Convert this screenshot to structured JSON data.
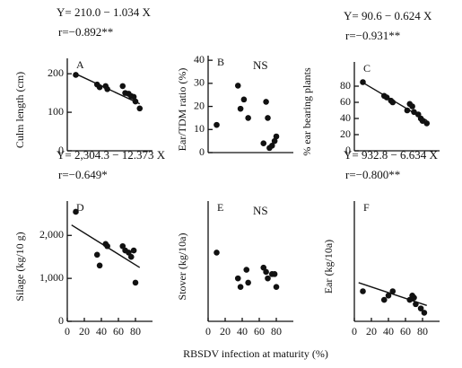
{
  "xlabel": "RBSDV infection at maturity (%)",
  "chart_data": [
    {
      "type": "scatter",
      "label": "A",
      "ylabel": "Culm length (cm)",
      "equation": "Y= 210.0 − 1.034 X",
      "r": "r=−0.892**",
      "x": [
        10,
        35,
        38,
        45,
        47,
        65,
        68,
        72,
        75,
        78,
        80,
        85
      ],
      "y": [
        197,
        172,
        165,
        168,
        160,
        168,
        150,
        148,
        142,
        140,
        128,
        110
      ],
      "xlim": [
        0,
        100
      ],
      "ylim": [
        0,
        240
      ],
      "yticks": [
        0,
        100,
        200
      ],
      "trendline": {
        "intercept": 210.0,
        "slope": -1.034,
        "x": [
          10,
          85
        ]
      }
    },
    {
      "type": "scatter",
      "label": "B",
      "ylabel": "Ear/TDM ratio (%)",
      "annotation": "NS",
      "x": [
        10,
        35,
        38,
        42,
        47,
        65,
        68,
        70,
        72,
        75,
        78,
        80
      ],
      "y": [
        12,
        29,
        19,
        23,
        15,
        4,
        22,
        15,
        2,
        3,
        5,
        7
      ],
      "xlim": [
        0,
        100
      ],
      "ylim": [
        0,
        42
      ],
      "yticks": [
        0,
        10,
        20,
        30,
        40
      ]
    },
    {
      "type": "scatter",
      "label": "C",
      "ylabel": "% ear bearing plants",
      "equation": "Y= 90.6 − 0.624 X",
      "r": "r=−0.931**",
      "x": [
        10,
        35,
        38,
        43,
        45,
        62,
        65,
        68,
        70,
        75,
        78,
        80,
        85
      ],
      "y": [
        85,
        68,
        66,
        62,
        60,
        50,
        58,
        55,
        48,
        45,
        40,
        37,
        34
      ],
      "xlim": [
        0,
        100
      ],
      "ylim": [
        0,
        110
      ],
      "yticks": [
        0,
        20,
        40,
        60,
        80
      ],
      "trendline": {
        "intercept": 90.6,
        "slope": -0.624,
        "x": [
          10,
          85
        ]
      }
    },
    {
      "type": "scatter",
      "label": "D",
      "ylabel": "Silage (kg/10 g)",
      "equation": "Y= 2,304.3 − 12.373 X",
      "r": "r=−0.649*",
      "x": [
        10,
        35,
        38,
        45,
        47,
        65,
        68,
        72,
        75,
        78,
        80
      ],
      "y": [
        2550,
        1550,
        1300,
        1800,
        1750,
        1750,
        1650,
        1600,
        1500,
        1650,
        900
      ],
      "xlim": [
        0,
        100
      ],
      "ylim": [
        0,
        2800
      ],
      "xticks": [
        0,
        20,
        40,
        60,
        80
      ],
      "yticks": [
        0,
        {
          "value": 1000,
          "label": "1,000"
        },
        {
          "value": 2000,
          "label": "2,000"
        }
      ],
      "trendline": {
        "intercept": 2304.3,
        "slope": -12.373,
        "x": [
          5,
          85
        ]
      }
    },
    {
      "type": "scatter",
      "label": "E",
      "ylabel": "Stover (kg/10a)",
      "annotation": "NS",
      "x": [
        10,
        35,
        38,
        45,
        47,
        65,
        68,
        70,
        75,
        78,
        80
      ],
      "y": [
        1600,
        1000,
        800,
        1200,
        900,
        1250,
        1150,
        1000,
        1100,
        1100,
        800
      ],
      "xlim": [
        0,
        100
      ],
      "ylim": [
        0,
        2800
      ],
      "xticks": [
        0,
        20,
        40,
        60,
        80
      ]
    },
    {
      "type": "scatter",
      "label": "F",
      "ylabel": "Ear (kg/10a)",
      "equation": "Y= 932.8 − 6.634 X",
      "r": "r=−0.800**",
      "x": [
        10,
        35,
        40,
        45,
        65,
        68,
        70,
        72,
        78,
        82
      ],
      "y": [
        700,
        500,
        600,
        700,
        500,
        600,
        550,
        400,
        300,
        200
      ],
      "xlim": [
        0,
        100
      ],
      "ylim": [
        0,
        2800
      ],
      "xticks": [
        0,
        20,
        40,
        60,
        80
      ],
      "trendline": {
        "intercept": 932.8,
        "slope": -6.634,
        "x": [
          5,
          85
        ]
      }
    }
  ]
}
